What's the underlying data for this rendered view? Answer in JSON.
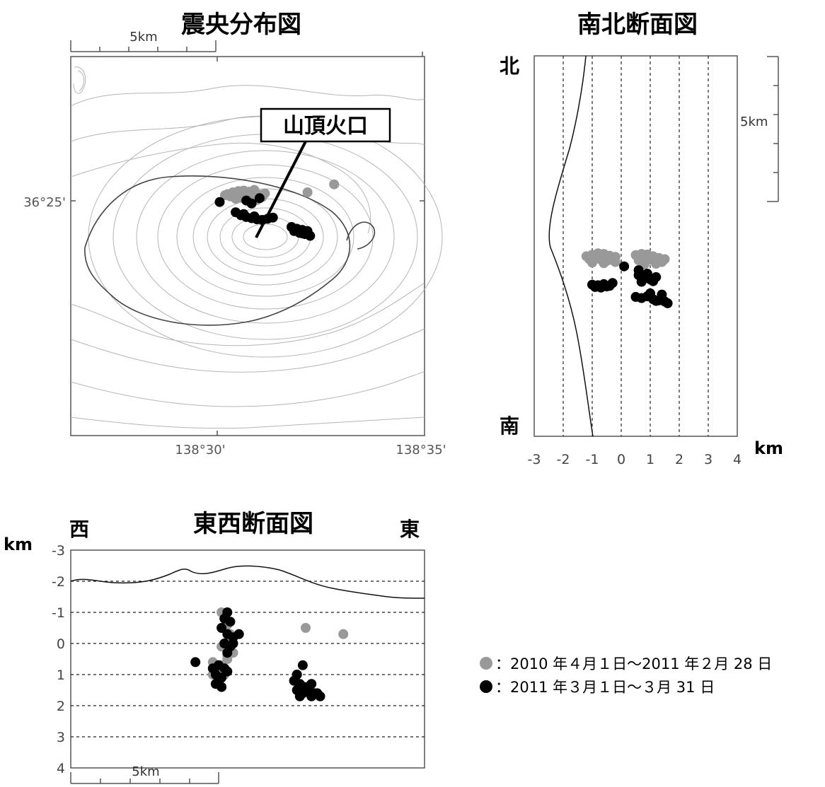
{
  "colors": {
    "period1": "#999999",
    "period2": "#000000",
    "contour": "#b4b4b4",
    "contour_dark": "#444444"
  },
  "epicenter_map": {
    "title": "震央分布図",
    "scale_label": "5km",
    "crater_label": "山頂火口",
    "lat_label": "36°25'",
    "lon_labels": [
      "138°30'",
      "138°35'"
    ]
  },
  "ns_section": {
    "title": "南北断面図",
    "north": "北",
    "south": "南",
    "unit": "km",
    "scale_label": "5km",
    "x_ticks": [
      "-3",
      "-2",
      "-1",
      "0",
      "1",
      "2",
      "3",
      "4"
    ]
  },
  "ew_section": {
    "title": "東西断面図",
    "west": "西",
    "east": "東",
    "unit": "km",
    "scale_label": "5km",
    "y_ticks": [
      "-3",
      "-2",
      "-1",
      "0",
      "1",
      "2",
      "3",
      "4"
    ]
  },
  "legend": {
    "items": [
      {
        "label": "：2010 年４月１日～2011 年２月 28 日",
        "color": "#999999"
      },
      {
        "label": "：2011 年３月１日～３月 31 日",
        "color": "#000000"
      }
    ]
  },
  "chart_data": [
    {
      "type": "scatter",
      "title": "震央分布図",
      "x_axis": "longitude",
      "y_axis": "latitude",
      "xlim": [
        138.451,
        138.584
      ],
      "ylim": [
        36.335,
        36.464
      ],
      "x_tick_labels": [
        "138°30'",
        "138°35'"
      ],
      "y_tick_labels": [
        "36°25'"
      ],
      "series": [
        {
          "name": "2010 年４月１日～2011 年２月 28 日",
          "color": "#999999",
          "x": [
            138.51,
            138.512,
            138.514,
            138.516,
            138.518,
            138.52,
            138.522,
            138.511,
            138.515,
            138.519,
            138.523,
            138.513,
            138.517,
            138.521,
            138.509,
            138.524,
            138.516,
            138.52,
            138.54,
            138.55
          ],
          "y": [
            36.4172,
            36.4178,
            36.4182,
            36.4176,
            36.418,
            36.4174,
            36.417,
            36.4164,
            36.416,
            36.4166,
            36.4162,
            36.4156,
            36.4158,
            36.4152,
            36.4168,
            36.4174,
            36.4184,
            36.4186,
            36.4178,
            36.4205
          ]
        },
        {
          "name": "2011 年３月１日～３月 31 日",
          "color": "#000000",
          "x": [
            138.507,
            138.517,
            138.519,
            138.522,
            138.513,
            138.515,
            138.517,
            138.519,
            138.521,
            138.523,
            138.525,
            138.527,
            138.516,
            138.52,
            138.534,
            138.536,
            138.538,
            138.54,
            138.535,
            138.537,
            138.539,
            138.541,
            138.538
          ],
          "y": [
            36.4145,
            36.415,
            36.414,
            36.4158,
            36.411,
            36.41,
            36.4094,
            36.409,
            36.4086,
            36.4084,
            36.4088,
            36.4092,
            36.4104,
            36.4096,
            36.406,
            36.4054,
            36.405,
            36.4046,
            36.4046,
            36.404,
            36.4036,
            36.403,
            36.4038
          ]
        }
      ]
    },
    {
      "type": "scatter",
      "title": "南北断面図",
      "xlabel": "km",
      "x_tick_labels": [
        "-3",
        "-2",
        "-1",
        "0",
        "1",
        "2",
        "3",
        "4"
      ],
      "xlim": [
        -3,
        4
      ],
      "series": [
        {
          "name": "2010 年４月１日～2011 年２月 28 日",
          "color": "#999999",
          "x": [
            -1.2,
            -1.0,
            -0.8,
            -0.6,
            -0.4,
            -0.2,
            -1.1,
            -0.9,
            -0.7,
            -0.5,
            -0.3,
            -1.0,
            -0.6,
            -0.2,
            0.5,
            0.7,
            0.9,
            1.1,
            1.3,
            1.5,
            0.6,
            0.8,
            1.0,
            1.2,
            1.4,
            0.8,
            1.2
          ],
          "y": [
            6.2,
            6.25,
            6.3,
            6.28,
            6.22,
            6.18,
            6.1,
            6.12,
            6.08,
            6.04,
            6.06,
            5.98,
            5.96,
            6.0,
            6.24,
            6.28,
            6.26,
            6.2,
            6.14,
            6.1,
            6.06,
            6.04,
            6.08,
            6.02,
            6.0,
            5.92,
            5.94
          ]
        },
        {
          "name": "2011 年３月１日～３月 31 日",
          "color": "#000000",
          "x": [
            0.1,
            0.6,
            -1.0,
            -0.8,
            -0.6,
            -0.4,
            -0.9,
            -0.7,
            -0.5,
            -0.3,
            0.6,
            0.8,
            1.0,
            1.2,
            0.7,
            1.1,
            0.9,
            0.5,
            0.7,
            0.9,
            1.1,
            1.3,
            1.5,
            1.0,
            1.4,
            1.6,
            1.2
          ],
          "y": [
            5.85,
            5.72,
            5.22,
            5.2,
            5.24,
            5.18,
            5.14,
            5.12,
            5.16,
            5.28,
            5.55,
            5.45,
            5.4,
            5.48,
            5.32,
            5.34,
            5.6,
            4.8,
            4.76,
            4.82,
            4.72,
            4.68,
            4.64,
            4.92,
            4.88,
            4.58,
            4.66
          ]
        }
      ]
    },
    {
      "type": "scatter",
      "title": "東西断面図",
      "ylabel": "km",
      "y_tick_labels": [
        "-3",
        "-2",
        "-1",
        "0",
        "1",
        "2",
        "3",
        "4"
      ],
      "ylim": [
        -3,
        4
      ],
      "series": [
        {
          "name": "2010 年４月１日～2011 年２月 28 日",
          "color": "#999999",
          "x": [
            5.2,
            5.3,
            5.4,
            5.5,
            5.6,
            5.3,
            5.5,
            5.2,
            5.6,
            5.4,
            5.3,
            5.5,
            4.9,
            5.0,
            5.1,
            5.2,
            5.3,
            5.1,
            5.0,
            4.9,
            5.2,
            5.4,
            8.1,
            9.4
          ],
          "y": [
            -1.0,
            -0.9,
            -0.6,
            -0.3,
            0.0,
            -0.5,
            -0.2,
            0.1,
            0.3,
            0.4,
            -0.8,
            -0.1,
            0.6,
            0.8,
            0.9,
            0.7,
            1.0,
            1.2,
            1.3,
            1.0,
            1.1,
            0.5,
            -0.5,
            -0.3
          ]
        },
        {
          "name": "2011 年３月１日～３月 31 日",
          "color": "#000000",
          "x": [
            5.4,
            5.3,
            5.5,
            5.2,
            5.4,
            5.6,
            5.3,
            5.5,
            5.4,
            5.8,
            5.6,
            4.3,
            4.9,
            5.1,
            5.3,
            5.0,
            5.2,
            5.4,
            5.0,
            5.2,
            8.0,
            7.8,
            7.7,
            7.9,
            8.1,
            8.3,
            7.8,
            8.0,
            8.2,
            8.4,
            8.6,
            7.9,
            8.3,
            8.5
          ],
          "y": [
            -1.0,
            -0.8,
            -0.7,
            -0.5,
            -0.3,
            -0.2,
            0.0,
            0.1,
            0.3,
            -0.3,
            0.0,
            0.6,
            0.8,
            0.7,
            0.8,
            1.0,
            1.1,
            0.9,
            1.3,
            1.4,
            0.7,
            1.0,
            1.2,
            1.3,
            1.4,
            1.3,
            1.5,
            1.6,
            1.5,
            1.6,
            1.7,
            1.7,
            1.7,
            1.6
          ]
        }
      ]
    }
  ]
}
